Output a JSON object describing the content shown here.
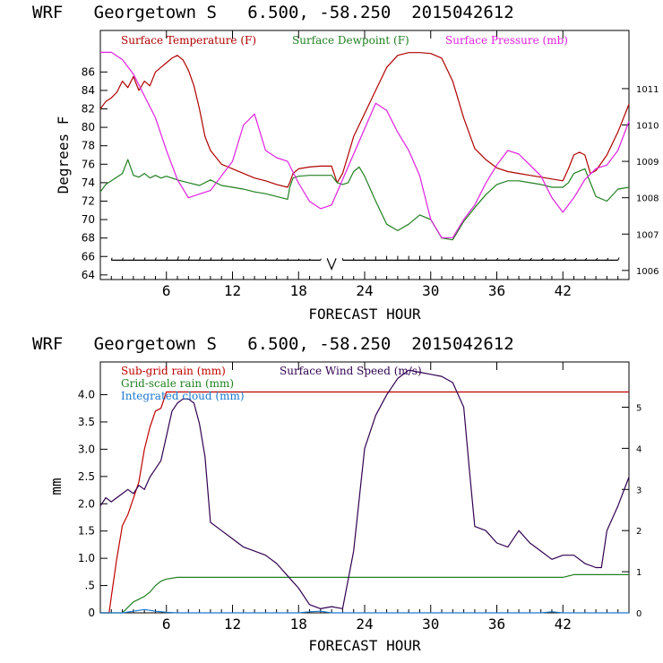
{
  "colors": {
    "temperature": "#b00000",
    "dewpoint": "#208020",
    "pressure": "#e020e0",
    "wind": "#300050",
    "subgrid_rain": "#c00000",
    "gridscale_rain": "#208020",
    "cloud": "#1a78d0",
    "axes": "#000000"
  },
  "chart_data": [
    {
      "type": "line",
      "title": "WRF   Georgetown S   6.500, -58.250  2015042612",
      "xlabel": "FORECAST HOUR",
      "ylabel": "Degrees F",
      "xlim": [
        0,
        48
      ],
      "ylim": [
        63.5,
        90.5
      ],
      "y2lim": [
        1005.75,
        1012.6
      ],
      "x_ticks": [
        6,
        12,
        18,
        24,
        30,
        36,
        42
      ],
      "x_tick_labels": [
        "6",
        "12",
        "18",
        "24",
        "30",
        "36",
        "42"
      ],
      "y_ticks": [
        64,
        66,
        68,
        70,
        72,
        74,
        76,
        78,
        80,
        82,
        84,
        86
      ],
      "y_tick_labels": [
        "64",
        "66",
        "68",
        "70",
        "72",
        "74",
        "76",
        "78",
        "80",
        "82",
        "84",
        "86"
      ],
      "y2_ticks": [
        1006,
        1007,
        1008,
        1009,
        1010,
        1011
      ],
      "y2_tick_labels": [
        "1006",
        "1007",
        "1008",
        "1009",
        "1010",
        "1011"
      ],
      "legend_position": "top",
      "series": [
        {
          "name": "Surface Temperature (F)",
          "axis": "left",
          "color_key": "temperature",
          "x": [
            0,
            0.5,
            1,
            1.5,
            2,
            2.5,
            3,
            3.5,
            4,
            4.5,
            5,
            5.5,
            6,
            6.5,
            7,
            7.5,
            8,
            8.5,
            9,
            9.5,
            10,
            11,
            12,
            13,
            14,
            15,
            16,
            17,
            17.2,
            17.5,
            18,
            19,
            20,
            21,
            21.5,
            22,
            22.5,
            23,
            24,
            25,
            26,
            27,
            28,
            29,
            30,
            31,
            32,
            33,
            34,
            35,
            36,
            37,
            38,
            39,
            40,
            41,
            42,
            42.5,
            43,
            43.5,
            44,
            44.5,
            45,
            46,
            47,
            48
          ],
          "y": [
            82,
            82.8,
            83.2,
            83.8,
            85,
            84.3,
            85.5,
            84,
            85,
            84.5,
            86,
            86.5,
            87,
            87.5,
            87.8,
            87.3,
            86.2,
            84.5,
            82,
            79,
            77.5,
            76,
            75.5,
            75,
            74.5,
            74.2,
            73.8,
            73.5,
            74,
            75,
            75.5,
            75.7,
            75.8,
            75.8,
            74,
            75,
            77,
            79,
            81.5,
            84,
            86.5,
            87.8,
            88.1,
            88.1,
            88,
            87.5,
            85,
            81,
            77.7,
            76.5,
            75.6,
            75.2,
            75,
            74.8,
            74.6,
            74.4,
            74.2,
            75.5,
            77,
            77.3,
            77,
            75,
            75.3,
            77,
            79.5,
            82.5
          ]
        },
        {
          "name": "Surface Dewpoint (F)",
          "axis": "left",
          "color_key": "dewpoint",
          "x": [
            0,
            0.5,
            1,
            1.5,
            2,
            2.5,
            3,
            3.5,
            4,
            4.5,
            5,
            5.5,
            6,
            7,
            8,
            9,
            10,
            11,
            12,
            13,
            14,
            15,
            16,
            17,
            17.2,
            17.5,
            18,
            19,
            20,
            21,
            21.5,
            22,
            22.5,
            23,
            23.5,
            24,
            25,
            26,
            27,
            28,
            29,
            30,
            31,
            32,
            33,
            34,
            35,
            36,
            37,
            38,
            39,
            40,
            41,
            42,
            42.5,
            43,
            44,
            45,
            46,
            47,
            48
          ],
          "y": [
            73,
            73.8,
            74.2,
            74.6,
            75,
            76.5,
            74.8,
            74.6,
            75,
            74.5,
            74.8,
            74.5,
            74.7,
            74.3,
            74,
            73.7,
            74.3,
            73.7,
            73.5,
            73.3,
            73,
            72.8,
            72.5,
            72.2,
            73.5,
            74.5,
            74.7,
            74.8,
            74.8,
            74.8,
            74,
            73.8,
            74,
            75.2,
            75.7,
            74.7,
            72,
            69.5,
            68.8,
            69.5,
            70.5,
            70,
            68,
            67.8,
            69.8,
            71.3,
            72.7,
            73.8,
            74.2,
            74.2,
            74,
            73.8,
            73.5,
            73.5,
            74,
            75,
            75.5,
            72.5,
            72,
            73.3,
            73.5
          ]
        },
        {
          "name": "Surface Pressure (mb)",
          "axis": "right",
          "color_key": "pressure",
          "x": [
            0,
            1,
            2,
            3,
            4,
            5,
            6,
            7,
            8,
            9,
            10,
            11,
            12,
            13,
            14,
            15,
            16,
            17,
            18,
            19,
            20,
            21,
            22,
            23,
            24,
            25,
            26,
            27,
            28,
            29,
            30,
            31,
            32,
            33,
            34,
            35,
            36,
            37,
            38,
            39,
            40,
            41,
            42,
            43,
            44,
            45,
            46,
            47,
            48
          ],
          "y": [
            1012,
            1012,
            1011.8,
            1011.4,
            1010.8,
            1010.2,
            1009.3,
            1008.5,
            1008,
            1008.1,
            1008.2,
            1008.6,
            1009,
            1010,
            1010.3,
            1009.3,
            1009.1,
            1009,
            1008.4,
            1007.9,
            1007.7,
            1007.8,
            1008.5,
            1009.2,
            1009.9,
            1010.6,
            1010.4,
            1009.8,
            1009.3,
            1008.6,
            1007.4,
            1006.9,
            1006.9,
            1007.4,
            1007.8,
            1008.4,
            1008.9,
            1009.3,
            1009.2,
            1008.9,
            1008.6,
            1008,
            1007.6,
            1008,
            1008.5,
            1008.8,
            1008.9,
            1009.3,
            1010.1
          ]
        }
      ],
      "wind_barbs": {
        "y": 65.6,
        "x": [
          1,
          2,
          3,
          4,
          5,
          6,
          7,
          8,
          9,
          10,
          11,
          12,
          13,
          14,
          15,
          16,
          17,
          18,
          19,
          20,
          22,
          23,
          24,
          25,
          26,
          27,
          28,
          29,
          30,
          31,
          32,
          33,
          34,
          35,
          36,
          37,
          38,
          39,
          40,
          41,
          42,
          43,
          44,
          45,
          46,
          47
        ],
        "direction_deg": [
          80,
          80,
          80,
          80,
          80,
          80,
          80,
          80,
          80,
          80,
          80,
          80,
          80,
          80,
          80,
          80,
          80,
          80,
          80,
          80,
          90,
          90,
          90,
          90,
          90,
          90,
          90,
          90,
          90,
          90,
          90,
          90,
          90,
          80,
          75,
          70,
          65,
          60,
          55,
          50,
          50,
          55,
          60,
          65,
          70,
          75
        ],
        "speed_ms": [
          2.5,
          2.5,
          2.5,
          3,
          3,
          4,
          5,
          5,
          4,
          3,
          3,
          2,
          2,
          2,
          2,
          2,
          1,
          0.5,
          0.5,
          0.5,
          1.5,
          2,
          4,
          5,
          6,
          6,
          6,
          6,
          6,
          5,
          4,
          3,
          2,
          2,
          2,
          2,
          2,
          2,
          2,
          2,
          2,
          2,
          2,
          2,
          2,
          3
        ]
      }
    },
    {
      "type": "line",
      "title": "WRF   Georgetown S   6.500, -58.250  2015042612",
      "xlabel": "FORECAST HOUR",
      "ylabel": "mm",
      "xlim": [
        0,
        48
      ],
      "ylim": [
        0,
        4.6
      ],
      "y2lim": [
        0,
        6.1
      ],
      "x_ticks": [
        6,
        12,
        18,
        24,
        30,
        36,
        42
      ],
      "x_tick_labels": [
        "6",
        "12",
        "18",
        "24",
        "30",
        "36",
        "42"
      ],
      "y_ticks": [
        0,
        0.5,
        1.0,
        1.5,
        2.0,
        2.5,
        3.0,
        3.5,
        4.0
      ],
      "y_tick_labels": [
        "0",
        ".5",
        "1.0",
        "1.5",
        "2.0",
        "2.5",
        "3.0",
        "3.5",
        "4.0"
      ],
      "y2_ticks": [
        0,
        1,
        2,
        3,
        4,
        5
      ],
      "y2_tick_labels": [
        "0",
        "1",
        "2",
        "3",
        "4",
        "5"
      ],
      "legend_position": "top-left",
      "series": [
        {
          "name": "Sub-grid rain (mm)",
          "axis": "left",
          "color_key": "subgrid_rain",
          "x": [
            0,
            0.8,
            1,
            1.5,
            2,
            2.5,
            3,
            3.5,
            4,
            4.5,
            5,
            5.5,
            6,
            48
          ],
          "y": [
            0,
            0,
            0.3,
            1,
            1.6,
            1.8,
            2.1,
            2.4,
            3.0,
            3.4,
            3.7,
            3.75,
            4.05,
            4.05
          ]
        },
        {
          "name": "Grid-scale rain (mm)",
          "axis": "left",
          "color_key": "gridscale_rain",
          "x": [
            0,
            2,
            2.5,
            3,
            3.5,
            4,
            4.5,
            5,
            5.5,
            6,
            7,
            42,
            43,
            48
          ],
          "y": [
            0,
            0,
            0.1,
            0.2,
            0.25,
            0.3,
            0.38,
            0.5,
            0.58,
            0.62,
            0.65,
            0.65,
            0.7,
            0.7
          ]
        },
        {
          "name": "Integrated cloud (mm)",
          "axis": "left",
          "color_key": "cloud",
          "x": [
            0,
            2,
            3,
            4,
            5,
            6,
            7,
            18,
            19,
            20,
            21,
            40,
            41,
            42,
            48
          ],
          "y": [
            0,
            0,
            0.03,
            0.06,
            0.03,
            0.01,
            0,
            0,
            0.02,
            0.03,
            0,
            0,
            0.02,
            0,
            0
          ]
        },
        {
          "name": "Surface Wind Speed (m/s)",
          "axis": "right",
          "color_key": "wind",
          "x": [
            0,
            0.5,
            1,
            1.5,
            2,
            2.5,
            3,
            3.5,
            4,
            4.5,
            5,
            5.5,
            6,
            6.5,
            7,
            7.5,
            8,
            8.5,
            9,
            9.5,
            10,
            11,
            12,
            13,
            14,
            15,
            16,
            17,
            18,
            19,
            20,
            21,
            22,
            23,
            24,
            25,
            26,
            27,
            28,
            29,
            30,
            31,
            32,
            33,
            33.5,
            34,
            35,
            36,
            37,
            38,
            39,
            40,
            41,
            42,
            43,
            44,
            45,
            45.5,
            46,
            47,
            48
          ],
          "y": [
            2.6,
            2.8,
            2.7,
            2.8,
            2.9,
            3.0,
            2.9,
            3.1,
            3.0,
            3.3,
            3.5,
            3.7,
            4.3,
            4.9,
            5.1,
            5.2,
            5.2,
            5.1,
            4.6,
            3.8,
            2.2,
            2.0,
            1.8,
            1.6,
            1.5,
            1.4,
            1.2,
            0.9,
            0.6,
            0.2,
            0.1,
            0.15,
            0.1,
            1.5,
            4.0,
            4.8,
            5.3,
            5.7,
            5.9,
            5.85,
            5.8,
            5.75,
            5.6,
            5.0,
            3.5,
            2.1,
            2.0,
            1.7,
            1.6,
            2.0,
            1.7,
            1.5,
            1.3,
            1.4,
            1.4,
            1.2,
            1.1,
            1.1,
            2.0,
            2.6,
            3.3
          ]
        }
      ]
    }
  ]
}
